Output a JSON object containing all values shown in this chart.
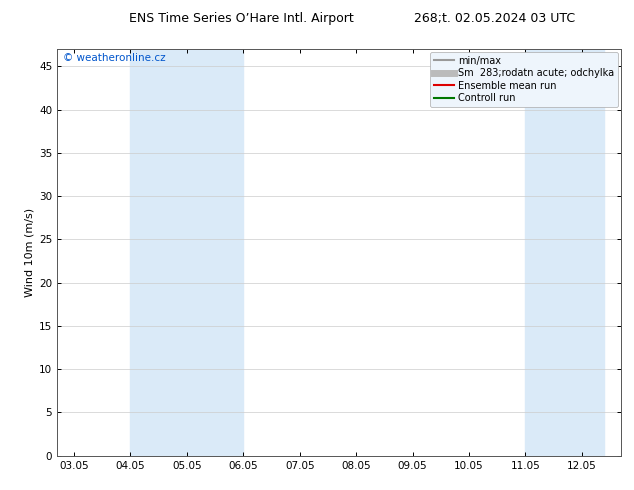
{
  "title_left": "ENS Time Series O’Hare Intl. Airport",
  "title_right": "268;t. 02.05.2024 03 UTC",
  "ylabel": "Wind 10m (m/s)",
  "watermark": "© weatheronline.cz",
  "watermark_color": "#0055cc",
  "xtick_labels": [
    "03.05",
    "04.05",
    "05.05",
    "06.05",
    "07.05",
    "08.05",
    "09.05",
    "10.05",
    "11.05",
    "12.05"
  ],
  "ytick_positions": [
    0,
    5,
    10,
    15,
    20,
    25,
    30,
    35,
    40,
    45
  ],
  "ylim": [
    0,
    47
  ],
  "shaded_bands": [
    {
      "xmin": 1.0,
      "xmax": 3.0,
      "color": "#daeaf8"
    },
    {
      "xmin": 8.0,
      "xmax": 9.4,
      "color": "#daeaf8"
    }
  ],
  "legend_entries": [
    {
      "label": "min/max",
      "color": "#999999",
      "lw": 1.5
    },
    {
      "label": "Sm  283;rodatn acute; odchylka",
      "color": "#bbbbbb",
      "lw": 5
    },
    {
      "label": "Ensemble mean run",
      "color": "#dd0000",
      "lw": 1.5
    },
    {
      "label": "Controll run",
      "color": "#007700",
      "lw": 1.5
    }
  ],
  "bg_color": "#ffffff",
  "grid_color": "#cccccc",
  "title_fontsize": 9,
  "tick_fontsize": 7.5,
  "ylabel_fontsize": 8,
  "legend_fontsize": 7,
  "watermark_fontsize": 7.5
}
